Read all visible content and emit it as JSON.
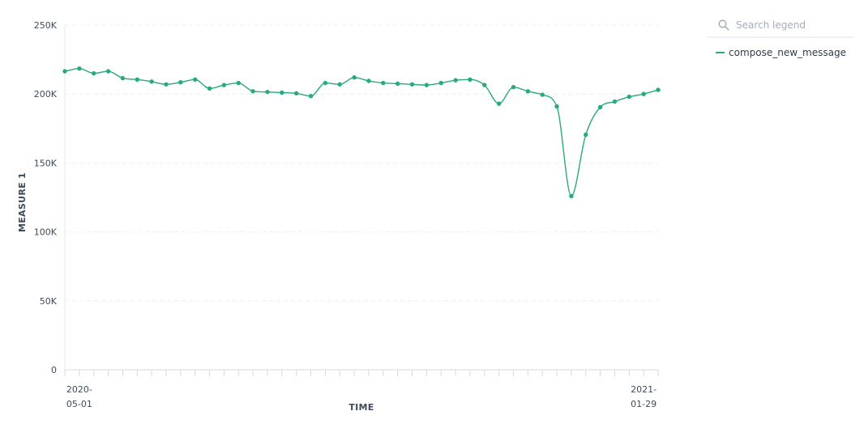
{
  "legend": {
    "search_placeholder": "Search legend",
    "items": [
      {
        "label": "compose_new_message",
        "color": "#2aa87e"
      }
    ]
  },
  "chart_data": {
    "type": "line",
    "xlabel": "TIME",
    "ylabel": "MEASURE 1",
    "ylim": [
      0,
      250000
    ],
    "yticks": [
      0,
      50000,
      100000,
      150000,
      200000,
      250000
    ],
    "ytick_labels": [
      "0",
      "50K",
      "100K",
      "150K",
      "200K",
      "250K"
    ],
    "x_start": "2020-04-24",
    "x_end": "2021-02-05",
    "xtick_labels": [
      {
        "date": "2020-05-01",
        "line1": "2020-",
        "line2": "05-01"
      },
      {
        "date": "2021-01-29",
        "line1": "2021-",
        "line2": "01-29"
      }
    ],
    "grid": true,
    "series": [
      {
        "name": "compose_new_message",
        "color": "#2aa87e",
        "x": [
          "2020-04-24",
          "2020-05-01",
          "2020-05-08",
          "2020-05-15",
          "2020-05-22",
          "2020-05-29",
          "2020-06-05",
          "2020-06-12",
          "2020-06-19",
          "2020-06-26",
          "2020-07-03",
          "2020-07-10",
          "2020-07-17",
          "2020-07-24",
          "2020-07-31",
          "2020-08-07",
          "2020-08-14",
          "2020-08-21",
          "2020-08-28",
          "2020-09-04",
          "2020-09-11",
          "2020-09-18",
          "2020-09-25",
          "2020-10-02",
          "2020-10-09",
          "2020-10-16",
          "2020-10-23",
          "2020-10-30",
          "2020-11-06",
          "2020-11-13",
          "2020-11-20",
          "2020-11-27",
          "2020-12-04",
          "2020-12-11",
          "2020-12-18",
          "2020-12-25",
          "2021-01-01",
          "2021-01-08",
          "2021-01-15",
          "2021-01-22",
          "2021-01-29",
          "2021-02-05"
        ],
        "values": [
          216500,
          218500,
          215000,
          216500,
          211500,
          210500,
          209000,
          207000,
          208500,
          210500,
          204000,
          206500,
          208000,
          202000,
          201500,
          201000,
          200500,
          198500,
          208000,
          207000,
          212000,
          209500,
          208000,
          207500,
          207000,
          206500,
          208000,
          210000,
          210500,
          206500,
          193000,
          205000,
          202000,
          199500,
          191000,
          126000,
          170500,
          190500,
          194500,
          198000,
          200000,
          203000
        ]
      }
    ]
  }
}
